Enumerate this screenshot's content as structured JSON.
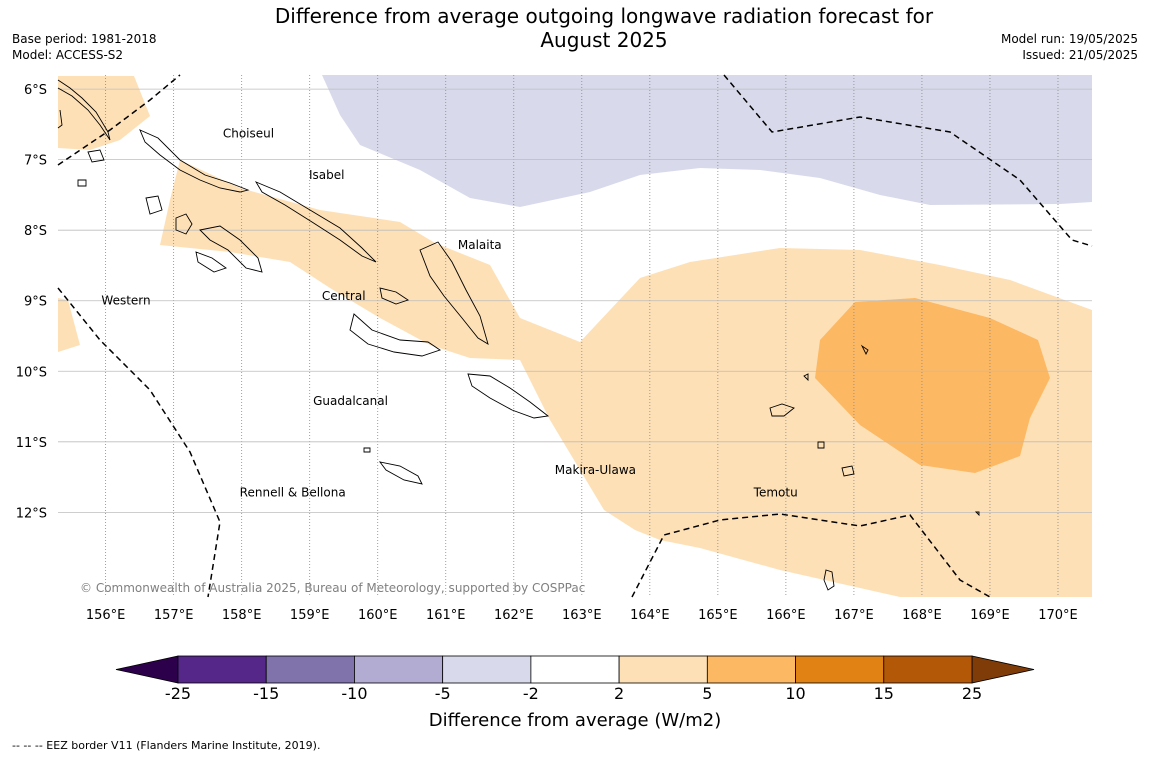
{
  "title_line1": "Difference from average outgoing longwave radiation forecast for",
  "title_line2": "August 2025",
  "base_period": "Base period: 1981-2018",
  "model": "Model: ACCESS-S2",
  "model_run": "Model run: 19/05/2025",
  "issued": "Issued: 21/05/2025",
  "copyright": "© Commonwealth of Australia 2025, Bureau of Meteorology, supported by COSPPac",
  "footnote": "--  --  -- EEZ border V11 (Flanders Marine Institute, 2019).",
  "map": {
    "lon_range": [
      155.3,
      170.5
    ],
    "lat_range": [
      -13.2,
      -5.8
    ],
    "lon_ticks": [
      156,
      157,
      158,
      159,
      160,
      161,
      162,
      163,
      164,
      165,
      166,
      167,
      168,
      169,
      170
    ],
    "lon_tick_labels": [
      "156°E",
      "157°E",
      "158°E",
      "159°E",
      "160°E",
      "161°E",
      "162°E",
      "163°E",
      "164°E",
      "165°E",
      "166°E",
      "167°E",
      "168°E",
      "169°E",
      "170°E"
    ],
    "lat_ticks": [
      -6,
      -7,
      -8,
      -9,
      -10,
      -11,
      -12
    ],
    "lat_tick_labels": [
      "6°S",
      "7°S",
      "8°S",
      "9°S",
      "10°S",
      "11°S",
      "12°S"
    ],
    "regions": [
      {
        "name": "Choiseul",
        "lon": 158.1,
        "lat": -6.63
      },
      {
        "name": "Isabel",
        "lon": 159.25,
        "lat": -7.22
      },
      {
        "name": "Malaita",
        "lon": 161.5,
        "lat": -8.21
      },
      {
        "name": "Western",
        "lon": 156.3,
        "lat": -9.0
      },
      {
        "name": "Central",
        "lon": 159.5,
        "lat": -8.93
      },
      {
        "name": "Guadalcanal",
        "lon": 159.6,
        "lat": -10.42
      },
      {
        "name": "Makira-Ulawa",
        "lon": 163.2,
        "lat": -11.4
      },
      {
        "name": "Rennell & Bellona",
        "lon": 158.75,
        "lat": -11.72
      },
      {
        "name": "Temotu",
        "lon": 165.85,
        "lat": -11.72
      }
    ]
  },
  "colorbar": {
    "title": "Difference from average (W/m2)",
    "tick_labels": [
      "-25",
      "-15",
      "-10",
      "-5",
      "-2",
      "2",
      "5",
      "10",
      "15",
      "25"
    ],
    "bins": [
      {
        "range": "-25 to -15",
        "color": "#542788"
      },
      {
        "range": "-15 to -10",
        "color": "#8073ac"
      },
      {
        "range": "-10 to -5",
        "color": "#b2abd2"
      },
      {
        "range": "-5 to -2",
        "color": "#d8daeb"
      },
      {
        "range": "-2 to 2",
        "color": "#ffffff"
      },
      {
        "range": "2 to 5",
        "color": "#fee0b6"
      },
      {
        "range": "5 to 10",
        "color": "#fdb863"
      },
      {
        "range": "10 to 15",
        "color": "#e08214"
      },
      {
        "range": "15 to 25",
        "color": "#b35806"
      }
    ],
    "under_color": "#2d004b",
    "over_color": "#7f3b08"
  }
}
